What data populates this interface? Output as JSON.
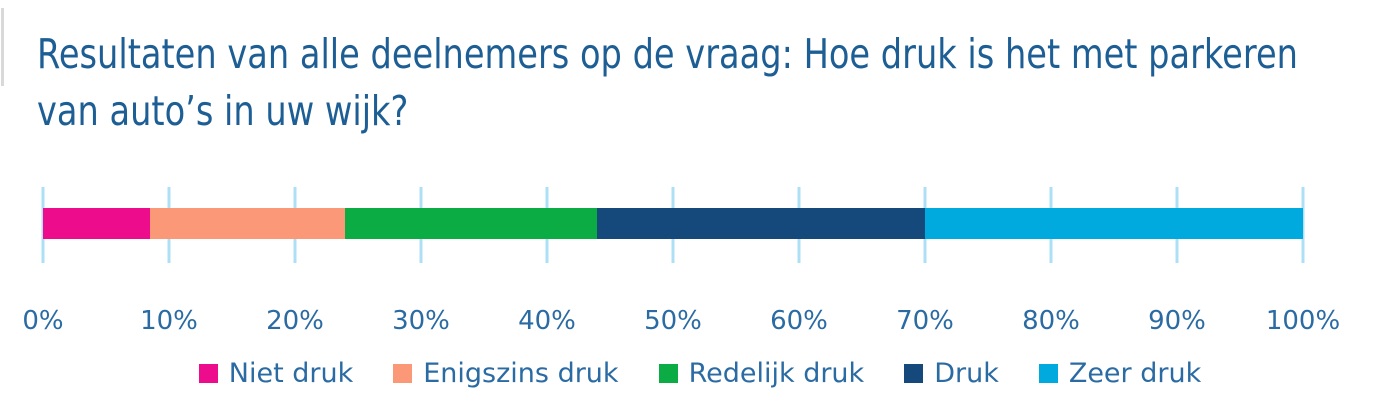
{
  "panel": {
    "title_lines": [
      "Resultaten van alle deelnemers op de vraag: Hoe druk is het met parkeren",
      "van auto’s in uw wijk?"
    ]
  },
  "chart_data": {
    "type": "bar",
    "variant": "horizontal-stacked",
    "title": "Resultaten van alle deelnemers op de vraag: Hoe druk is het met parkeren van auto’s in uw wijk?",
    "categories": [
      "Niet druk",
      "Enigszins druk",
      "Redelijk druk",
      "Druk",
      "Zeer druk"
    ],
    "values": [
      8.5,
      15.5,
      20,
      26,
      30
    ],
    "unit": "%",
    "series": [
      {
        "name": "Niet druk",
        "value": 8.5,
        "color": "#ED0C8C"
      },
      {
        "name": "Enigszins druk",
        "value": 15.5,
        "color": "#FA9878"
      },
      {
        "name": "Redelijk druk",
        "value": 20,
        "color": "#0CAC44"
      },
      {
        "name": "Druk",
        "value": 26,
        "color": "#15497B"
      },
      {
        "name": "Zeer druk",
        "value": 30,
        "color": "#00A9DE"
      }
    ],
    "x_axis": {
      "min": 0,
      "max": 100,
      "tick_step": 10,
      "tick_labels": [
        "0%",
        "10%",
        "20%",
        "30%",
        "40%",
        "50%",
        "60%",
        "70%",
        "80%",
        "90%",
        "100%"
      ]
    },
    "grid": true,
    "legend_position": "bottom"
  },
  "style": {
    "title_color": "#1D5E94",
    "axis_label_color": "#2B6BA3",
    "legend_text_color": "#2B6BA3",
    "gridline_color": "#ADDFF5",
    "background": "#FFFFFF"
  }
}
